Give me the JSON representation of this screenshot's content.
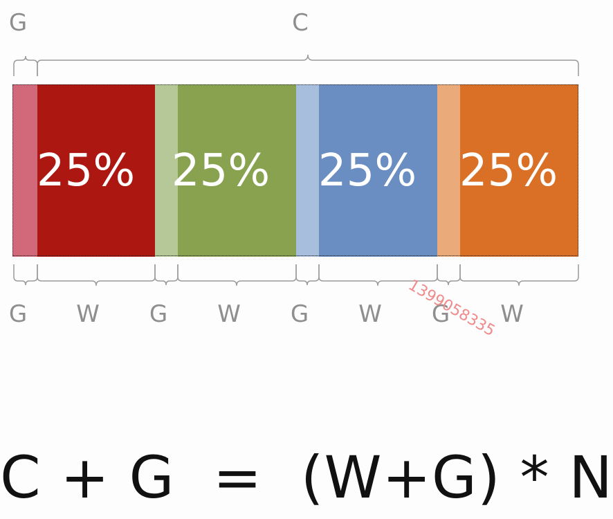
{
  "top_labels": {
    "gutter": "G",
    "container": "C"
  },
  "segments": [
    {
      "kind": "G",
      "color": "#d2697b"
    },
    {
      "kind": "W",
      "color": "#ad1712",
      "text": "25%"
    },
    {
      "kind": "G",
      "color": "#b6c898"
    },
    {
      "kind": "W",
      "color": "#89a24f",
      "text": "25%"
    },
    {
      "kind": "G",
      "color": "#a7bedc"
    },
    {
      "kind": "W",
      "color": "#6a8dc2",
      "text": "25%"
    },
    {
      "kind": "G",
      "color": "#eaaa7a"
    },
    {
      "kind": "W",
      "color": "#d97025",
      "text": "25%"
    }
  ],
  "bottom_labels": [
    "G",
    "W",
    "G",
    "W",
    "G",
    "W",
    "G",
    "W"
  ],
  "watermark": "1399058335",
  "formula": "C + G  =  (W+G) * N"
}
